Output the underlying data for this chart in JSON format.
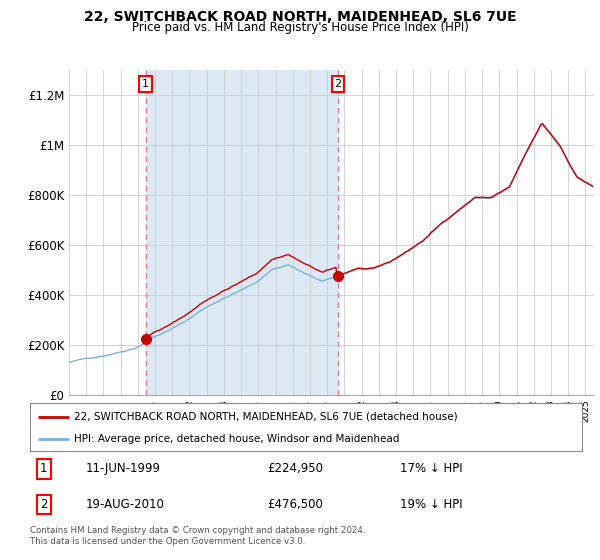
{
  "title": "22, SWITCHBACK ROAD NORTH, MAIDENHEAD, SL6 7UE",
  "subtitle": "Price paid vs. HM Land Registry's House Price Index (HPI)",
  "ylabel_ticks": [
    "£0",
    "£200K",
    "£400K",
    "£600K",
    "£800K",
    "£1M",
    "£1.2M"
  ],
  "ytick_values": [
    0,
    200000,
    400000,
    600000,
    800000,
    1000000,
    1200000
  ],
  "ylim": [
    0,
    1300000
  ],
  "plot_bg_color": "#ffffff",
  "shade_color": "#dce9f5",
  "hpi_color": "#7ab3d9",
  "price_color": "#cc0000",
  "dashed_line_color": "#e08080",
  "marker1_label": "11-JUN-1999",
  "marker1_price": "£224,950",
  "marker1_note": "17% ↓ HPI",
  "marker2_label": "19-AUG-2010",
  "marker2_price": "£476,500",
  "marker2_note": "19% ↓ HPI",
  "legend_line1": "22, SWITCHBACK ROAD NORTH, MAIDENHEAD, SL6 7UE (detached house)",
  "legend_line2": "HPI: Average price, detached house, Windsor and Maidenhead",
  "footnote": "Contains HM Land Registry data © Crown copyright and database right 2024.\nThis data is licensed under the Open Government Licence v3.0.",
  "marker1_year": 1999.45,
  "marker1_value": 224950,
  "marker2_year": 2010.63,
  "marker2_value": 476500,
  "xmin": 1995.0,
  "xmax": 2025.5
}
